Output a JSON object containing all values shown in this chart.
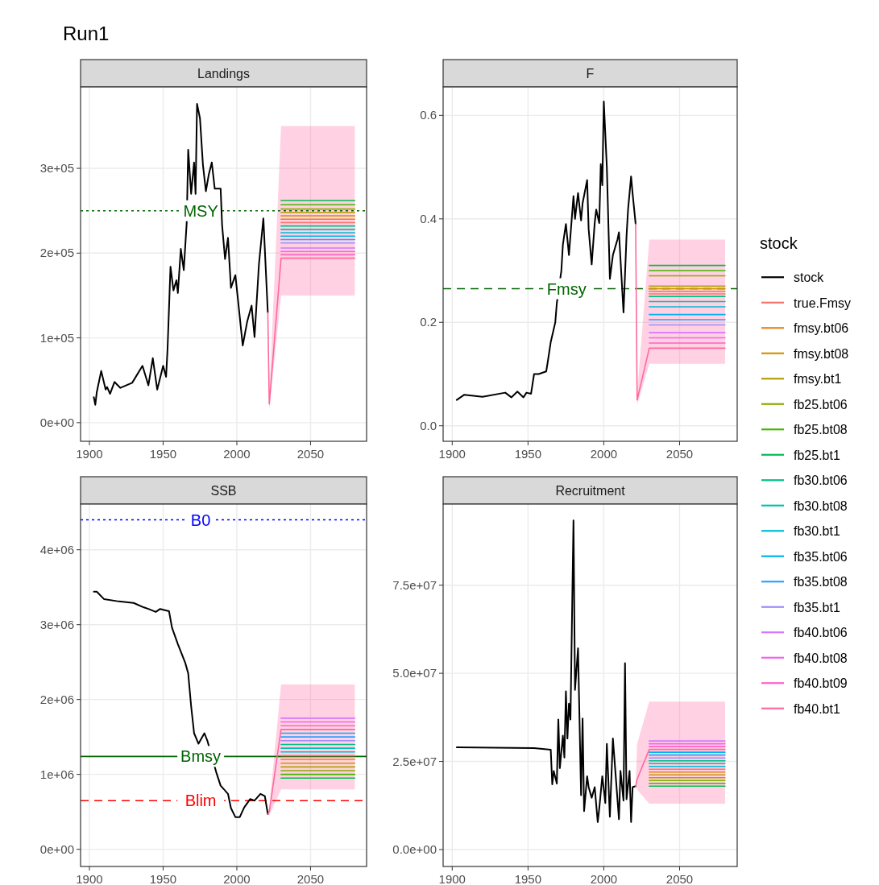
{
  "chart_data": [
    {
      "type": "line",
      "title": "Run1",
      "subtitle": "Landings",
      "xlim": [
        1894,
        2088
      ],
      "xticks": [
        1900,
        1950,
        2000,
        2050
      ],
      "ylim": [
        -22000,
        396000
      ],
      "yticks": [
        {
          "value": 0,
          "label": "0e+00"
        },
        {
          "value": 100000,
          "label": "1e+05"
        },
        {
          "value": 200000,
          "label": "2e+05"
        },
        {
          "value": 300000,
          "label": "3e+05"
        }
      ],
      "grid": true,
      "ref_lines": [
        {
          "axis": "y",
          "value": 250000,
          "label": "MSY",
          "color": "#006400",
          "line_style": "dotted"
        }
      ],
      "x": [
        2021,
        2022,
        2030,
        2080
      ],
      "series": [
        {
          "color": "#000000",
          "x": [
            1903,
            1904,
            1905,
            1908,
            1911,
            1912,
            1914,
            1917,
            1921,
            1929,
            1936,
            1940,
            1943,
            1946,
            1950,
            1952,
            1953,
            1955,
            1957,
            1959,
            1960,
            1962,
            1964,
            1966,
            1967,
            1969,
            1971,
            1972,
            1973,
            1975,
            1977,
            1979,
            1981,
            1983,
            1985,
            1989,
            1990,
            1992,
            1994,
            1996,
            1999,
            2001,
            2004,
            2007,
            2010,
            2012,
            2015,
            2018,
            2021
          ],
          "values": [
            30000,
            21000,
            36000,
            61000,
            39000,
            42000,
            34000,
            48000,
            41000,
            47000,
            67000,
            44000,
            76000,
            39000,
            67000,
            54000,
            87000,
            184000,
            156000,
            168000,
            153000,
            205000,
            180000,
            236000,
            322000,
            270000,
            307000,
            270000,
            376000,
            359000,
            304000,
            273000,
            293000,
            307000,
            276000,
            276000,
            233000,
            193000,
            218000,
            159000,
            174000,
            141000,
            91000,
            119000,
            138000,
            101000,
            187000,
            241000,
            130000
          ]
        },
        {
          "color": "#F8766D",
          "values": [
            null,
            null,
            236000,
            236000
          ]
        },
        {
          "color": "#E7851E",
          "values": [
            null,
            null,
            240000,
            240000
          ]
        },
        {
          "color": "#D09400",
          "values": [
            null,
            null,
            244000,
            244000
          ]
        },
        {
          "color": "#B2A100",
          "values": [
            null,
            null,
            248000,
            248000
          ]
        },
        {
          "color": "#89AC00",
          "values": [
            null,
            null,
            252000,
            252000
          ]
        },
        {
          "color": "#45B500",
          "values": [
            null,
            null,
            257000,
            257000
          ]
        },
        {
          "color": "#00BC51",
          "values": [
            null,
            null,
            262000,
            262000
          ]
        },
        {
          "color": "#00C087",
          "values": [
            null,
            null,
            232000,
            232000
          ]
        },
        {
          "color": "#00C0B2",
          "values": [
            null,
            null,
            228000,
            228000
          ]
        },
        {
          "color": "#00BCD6",
          "values": [
            null,
            null,
            224000,
            224000
          ]
        },
        {
          "color": "#00B3F2",
          "values": [
            null,
            null,
            220000,
            220000
          ]
        },
        {
          "color": "#29A3FF",
          "values": [
            null,
            null,
            216000,
            216000
          ]
        },
        {
          "color": "#9C8DFF",
          "values": [
            null,
            null,
            212000,
            212000
          ]
        },
        {
          "color": "#D277FF",
          "values": [
            null,
            null,
            206000,
            206000
          ]
        },
        {
          "color": "#F166E8",
          "values": [
            null,
            null,
            202000,
            202000
          ]
        },
        {
          "color": "#FF61C7",
          "values": [
            null,
            null,
            198000,
            198000
          ]
        },
        {
          "color": "#FF689E",
          "values": [
            130000,
            22000,
            194000,
            194000
          ],
          "lower": [
            130000,
            15000,
            150000,
            150000
          ],
          "upper": [
            130000,
            30000,
            350000,
            350000
          ]
        }
      ]
    },
    {
      "type": "line",
      "subtitle": "F",
      "xlim": [
        1894,
        2088
      ],
      "xticks": [
        1900,
        1950,
        2000,
        2050
      ],
      "ylim": [
        -0.03,
        0.655
      ],
      "yticks": [
        {
          "value": 0,
          "label": "0.0"
        },
        {
          "value": 0.2,
          "label": "0.2"
        },
        {
          "value": 0.4,
          "label": "0.4"
        },
        {
          "value": 0.6,
          "label": "0.6"
        }
      ],
      "grid": true,
      "legend": "right",
      "legend_title": "stock",
      "ref_lines": [
        {
          "axis": "y",
          "value": 0.265,
          "label": "Fmsy",
          "color": "#006400",
          "line_style": "dashed"
        }
      ],
      "x": [
        2021,
        2022,
        2030,
        2080
      ],
      "series": [
        {
          "name": "stock",
          "color": "#000000",
          "x": [
            1903,
            1908,
            1920,
            1935,
            1939,
            1943,
            1947,
            1949,
            1952,
            1954,
            1957,
            1962,
            1963,
            1965,
            1968,
            1969,
            1972,
            1973,
            1975,
            1977,
            1980,
            1981,
            1983,
            1985,
            1986,
            1989,
            1990,
            1992,
            1994,
            1995,
            1997,
            1998,
            1999,
            2000,
            2002,
            2004,
            2006,
            2009,
            2010,
            2013,
            2015,
            2016,
            2018,
            2019,
            2021
          ],
          "values": [
            0.05,
            0.06,
            0.056,
            0.064,
            0.055,
            0.066,
            0.055,
            0.064,
            0.062,
            0.1,
            0.1,
            0.105,
            0.123,
            0.162,
            0.2,
            0.237,
            0.3,
            0.35,
            0.39,
            0.33,
            0.444,
            0.4,
            0.45,
            0.397,
            0.43,
            0.475,
            0.38,
            0.312,
            0.392,
            0.418,
            0.392,
            0.506,
            0.465,
            0.627,
            0.5,
            0.284,
            0.33,
            0.36,
            0.374,
            0.219,
            0.367,
            0.418,
            0.482,
            0.449,
            0.39
          ]
        },
        {
          "name": "true.Fmsy",
          "color": "#F8766D",
          "values": [
            null,
            null,
            0.255,
            0.255
          ]
        },
        {
          "name": "fmsy.bt06",
          "color": "#E7851E",
          "values": [
            null,
            null,
            0.26,
            0.26
          ]
        },
        {
          "name": "fmsy.bt08",
          "color": "#D09400",
          "values": [
            null,
            null,
            0.265,
            0.265
          ]
        },
        {
          "name": "fmsy.bt1",
          "color": "#B2A100",
          "values": [
            null,
            null,
            0.27,
            0.27
          ]
        },
        {
          "name": "fb25.bt06",
          "color": "#89AC00",
          "values": [
            null,
            null,
            0.29,
            0.29
          ]
        },
        {
          "name": "fb25.bt08",
          "color": "#45B500",
          "values": [
            null,
            null,
            0.3,
            0.3
          ]
        },
        {
          "name": "fb25.bt1",
          "color": "#00BC51",
          "values": [
            null,
            null,
            0.31,
            0.31
          ]
        },
        {
          "name": "fb30.bt06",
          "color": "#00C087",
          "values": [
            null,
            null,
            0.25,
            0.25
          ]
        },
        {
          "name": "fb30.bt08",
          "color": "#00C0B2",
          "values": [
            null,
            null,
            0.24,
            0.24
          ]
        },
        {
          "name": "fb30.bt1",
          "color": "#00BCD6",
          "values": [
            null,
            null,
            0.23,
            0.23
          ]
        },
        {
          "name": "fb35.bt06",
          "color": "#00B3F2",
          "values": [
            null,
            null,
            0.215,
            0.215
          ]
        },
        {
          "name": "fb35.bt08",
          "color": "#29A3FF",
          "values": [
            null,
            null,
            0.205,
            0.205
          ]
        },
        {
          "name": "fb35.bt1",
          "color": "#9C8DFF",
          "values": [
            null,
            null,
            0.195,
            0.195
          ]
        },
        {
          "name": "fb40.bt06",
          "color": "#D277FF",
          "values": [
            null,
            null,
            0.18,
            0.18
          ]
        },
        {
          "name": "fb40.bt08",
          "color": "#F166E8",
          "values": [
            null,
            null,
            0.17,
            0.17
          ]
        },
        {
          "name": "fb40.bt09",
          "color": "#FF61C7",
          "values": [
            null,
            null,
            0.16,
            0.16
          ]
        },
        {
          "name": "fb40.bt1",
          "color": "#FF689E",
          "values": [
            0.39,
            0.05,
            0.15,
            0.15
          ],
          "lower": [
            0.39,
            0.04,
            0.12,
            0.12
          ],
          "upper": [
            0.39,
            0.06,
            0.36,
            0.36
          ]
        }
      ]
    },
    {
      "type": "line",
      "subtitle": "SSB",
      "xlim": [
        1894,
        2088
      ],
      "xticks": [
        1900,
        1950,
        2000,
        2050
      ],
      "ylim": [
        -230000,
        4610000
      ],
      "yticks": [
        {
          "value": 0,
          "label": "0e+00"
        },
        {
          "value": 1000000,
          "label": "1e+06"
        },
        {
          "value": 2000000,
          "label": "2e+06"
        },
        {
          "value": 3000000,
          "label": "3e+06"
        },
        {
          "value": 4000000,
          "label": "4e+06"
        }
      ],
      "grid": true,
      "ref_lines": [
        {
          "axis": "y",
          "value": 4400000,
          "label": "B0",
          "color": "#0000FF",
          "line_style": "dotted"
        },
        {
          "axis": "y",
          "value": 1240000,
          "label": "Bmsy",
          "color": "#006400",
          "line_style": "solid"
        },
        {
          "axis": "y",
          "value": 650000,
          "label": "Blim",
          "color": "#FF0000",
          "line_style": "dashed"
        }
      ],
      "x": [
        2021,
        2022,
        2030,
        2080
      ],
      "series": [
        {
          "color": "#000000",
          "x": [
            1903,
            1905,
            1910,
            1920,
            1930,
            1937,
            1940,
            1945,
            1948,
            1954,
            1956,
            1960,
            1965,
            1967,
            1969,
            1971,
            1974,
            1978,
            1980,
            1986,
            1989,
            1994,
            1996,
            1999,
            2002,
            2005,
            2009,
            2012,
            2016,
            2019,
            2021
          ],
          "values": [
            3440000,
            3440000,
            3340000,
            3310000,
            3290000,
            3230000,
            3210000,
            3170000,
            3210000,
            3180000,
            2960000,
            2740000,
            2490000,
            2350000,
            1910000,
            1550000,
            1410000,
            1550000,
            1450000,
            1030000,
            850000,
            740000,
            550000,
            430000,
            430000,
            560000,
            670000,
            650000,
            740000,
            710000,
            470000
          ]
        },
        {
          "color": "#F8766D",
          "values": [
            null,
            null,
            1250000,
            1250000
          ]
        },
        {
          "color": "#E7851E",
          "values": [
            null,
            null,
            1200000,
            1200000
          ]
        },
        {
          "color": "#D09400",
          "values": [
            null,
            null,
            1150000,
            1150000
          ]
        },
        {
          "color": "#B2A100",
          "values": [
            null,
            null,
            1100000,
            1100000
          ]
        },
        {
          "color": "#89AC00",
          "values": [
            null,
            null,
            1050000,
            1050000
          ]
        },
        {
          "color": "#45B500",
          "values": [
            null,
            null,
            1000000,
            1000000
          ]
        },
        {
          "color": "#00BC51",
          "values": [
            null,
            null,
            950000,
            950000
          ]
        },
        {
          "color": "#00C087",
          "values": [
            null,
            null,
            1400000,
            1400000
          ]
        },
        {
          "color": "#00C0B2",
          "values": [
            null,
            null,
            1350000,
            1350000
          ]
        },
        {
          "color": "#00BCD6",
          "values": [
            null,
            null,
            1300000,
            1300000
          ]
        },
        {
          "color": "#00B3F2",
          "values": [
            null,
            null,
            1550000,
            1550000
          ]
        },
        {
          "color": "#29A3FF",
          "values": [
            null,
            null,
            1500000,
            1500000
          ]
        },
        {
          "color": "#9C8DFF",
          "values": [
            null,
            null,
            1450000,
            1450000
          ]
        },
        {
          "color": "#D277FF",
          "values": [
            null,
            null,
            1750000,
            1750000
          ]
        },
        {
          "color": "#F166E8",
          "values": [
            null,
            null,
            1700000,
            1700000
          ]
        },
        {
          "color": "#FF61C7",
          "values": [
            null,
            null,
            1650000,
            1650000
          ]
        },
        {
          "color": "#FF689E",
          "values": [
            470000,
            500000,
            1600000,
            1600000
          ],
          "lower": [
            470000,
            450000,
            800000,
            800000
          ],
          "upper": [
            470000,
            560000,
            2200000,
            2200000
          ]
        }
      ]
    },
    {
      "type": "line",
      "subtitle": "Recruitment",
      "xlim": [
        1894,
        2088
      ],
      "xticks": [
        1900,
        1950,
        2000,
        2050
      ],
      "ylim": [
        -4800000,
        98000000
      ],
      "yticks": [
        {
          "value": 0,
          "label": "0.0e+00"
        },
        {
          "value": 25000000,
          "label": "2.5e+07"
        },
        {
          "value": 50000000,
          "label": "5.0e+07"
        },
        {
          "value": 75000000,
          "label": "7.5e+07"
        }
      ],
      "grid": true,
      "x": [
        2021,
        2022,
        2030,
        2080
      ],
      "series": [
        {
          "color": "#000000",
          "x": [
            1903,
            1954,
            1965,
            1966,
            1967,
            1969,
            1970,
            1971,
            1973,
            1974,
            1975,
            1976,
            1977,
            1978,
            1980,
            1981,
            1983,
            1985,
            1986,
            1987,
            1989,
            1990,
            1992,
            1994,
            1996,
            1997,
            1999,
            2001,
            2002,
            2004,
            2006,
            2010,
            2011,
            2013,
            2014,
            2015,
            2017,
            2018,
            2019,
            2021
          ],
          "values": [
            29000000,
            28800000,
            28300000,
            18500000,
            22300000,
            18700000,
            36900000,
            23100000,
            32300000,
            26100000,
            44900000,
            31500000,
            41400000,
            36900000,
            93400000,
            45300000,
            57100000,
            15400000,
            37200000,
            10900000,
            20800000,
            17700000,
            14700000,
            17700000,
            7800000,
            11600000,
            20800000,
            13200000,
            30000000,
            9300000,
            31500000,
            8600000,
            22300000,
            13900000,
            52900000,
            14300000,
            22300000,
            7800000,
            17700000,
            18000000
          ]
        },
        {
          "color": "#F8766D",
          "values": [
            null,
            null,
            22800000,
            22800000
          ]
        },
        {
          "color": "#E7851E",
          "values": [
            null,
            null,
            22000000,
            22000000
          ]
        },
        {
          "color": "#D09400",
          "values": [
            null,
            null,
            21200000,
            21200000
          ]
        },
        {
          "color": "#B2A100",
          "values": [
            null,
            null,
            20400000,
            20400000
          ]
        },
        {
          "color": "#89AC00",
          "values": [
            null,
            null,
            19600000,
            19600000
          ]
        },
        {
          "color": "#45B500",
          "values": [
            null,
            null,
            18800000,
            18800000
          ]
        },
        {
          "color": "#00BC51",
          "values": [
            null,
            null,
            18000000,
            18000000
          ]
        },
        {
          "color": "#00C087",
          "values": [
            null,
            null,
            25200000,
            25200000
          ]
        },
        {
          "color": "#00C0B2",
          "values": [
            null,
            null,
            24400000,
            24400000
          ]
        },
        {
          "color": "#00BCD6",
          "values": [
            null,
            null,
            23600000,
            23600000
          ]
        },
        {
          "color": "#00B3F2",
          "values": [
            null,
            null,
            27600000,
            27600000
          ]
        },
        {
          "color": "#29A3FF",
          "values": [
            null,
            null,
            26800000,
            26800000
          ]
        },
        {
          "color": "#9C8DFF",
          "values": [
            null,
            null,
            26000000,
            26000000
          ]
        },
        {
          "color": "#D277FF",
          "values": [
            null,
            null,
            30800000,
            30800000
          ]
        },
        {
          "color": "#F166E8",
          "values": [
            null,
            null,
            30000000,
            30000000
          ]
        },
        {
          "color": "#FF61C7",
          "values": [
            null,
            null,
            29200000,
            29200000
          ]
        },
        {
          "color": "#FF689E",
          "values": [
            18000000,
            20000000,
            28400000,
            28400000
          ],
          "lower": [
            18000000,
            17000000,
            13000000,
            13000000
          ],
          "upper": [
            18000000,
            30000000,
            42000000,
            42000000
          ]
        }
      ]
    }
  ]
}
